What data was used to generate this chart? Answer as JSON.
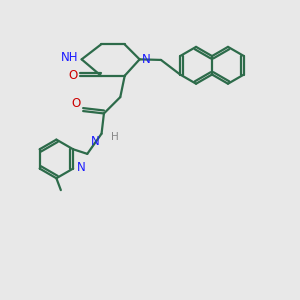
{
  "bg_color": "#e8e8e8",
  "bond_color": "#2d6b4a",
  "N_color": "#1a1aff",
  "O_color": "#cc0000",
  "H_color": "#888888",
  "lw": 1.6,
  "fs": 8.5,
  "figsize": [
    3.0,
    3.0
  ],
  "dpi": 100,
  "xlim": [
    0,
    10
  ],
  "ylim": [
    0,
    10
  ]
}
